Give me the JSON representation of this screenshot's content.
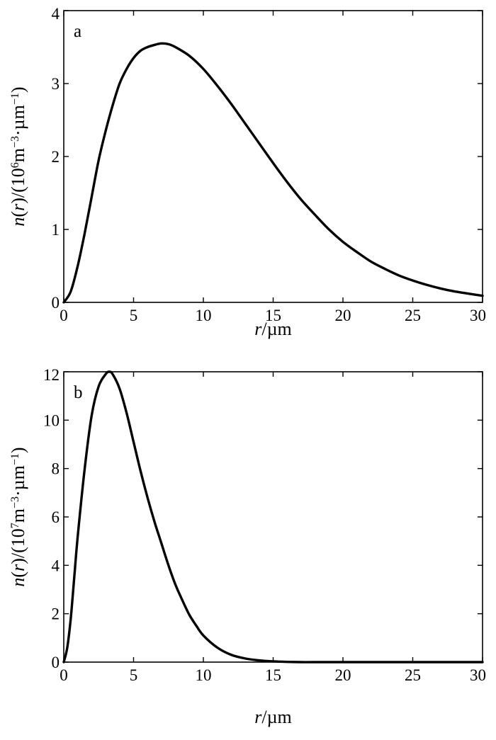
{
  "chart_data": [
    {
      "type": "line",
      "panel_label": "a",
      "xlabel": {
        "italic": "r",
        "rest": "/µm"
      },
      "ylabel": {
        "italic1": "n",
        "p1": "(",
        "italic2": "r",
        "p2": ")/(10",
        "exp1": "6",
        "unit": "m",
        "exp2": "−3",
        "dot": "·µm",
        "exp3": "−1",
        "end": ")"
      },
      "xlim": [
        0,
        30
      ],
      "ylim": [
        0,
        4
      ],
      "xticks": [
        "0",
        "5",
        "10",
        "15",
        "20",
        "25",
        "30"
      ],
      "yticks": [
        "0",
        "1",
        "2",
        "3",
        "4"
      ],
      "grid": false,
      "series": [
        {
          "x": [
            0,
            0.5,
            1,
            1.5,
            2,
            2.5,
            3,
            3.5,
            4,
            4.5,
            5,
            5.5,
            6,
            6.5,
            7,
            7.5,
            8,
            9,
            10,
            11,
            12,
            13,
            14,
            15,
            16,
            17,
            18,
            19,
            20,
            21,
            22,
            23,
            24,
            25,
            26,
            27,
            28,
            29,
            30
          ],
          "y": [
            0,
            0.15,
            0.5,
            0.95,
            1.45,
            1.95,
            2.35,
            2.7,
            3.0,
            3.2,
            3.35,
            3.45,
            3.5,
            3.53,
            3.55,
            3.54,
            3.5,
            3.38,
            3.2,
            2.97,
            2.72,
            2.45,
            2.18,
            1.91,
            1.65,
            1.41,
            1.2,
            1.0,
            0.83,
            0.69,
            0.56,
            0.46,
            0.37,
            0.3,
            0.24,
            0.19,
            0.15,
            0.12,
            0.09
          ]
        }
      ]
    },
    {
      "type": "line",
      "panel_label": "b",
      "xlabel": {
        "italic": "r",
        "rest": "/µm"
      },
      "ylabel": {
        "italic1": "n",
        "p1": "(",
        "italic2": "r",
        "p2": ")/(10",
        "exp1": "7",
        "unit": "m",
        "exp2": "−3",
        "dot": "·µm",
        "exp3": "−1",
        "end": ")"
      },
      "xlim": [
        0,
        30
      ],
      "ylim": [
        0,
        12
      ],
      "xticks": [
        "0",
        "5",
        "10",
        "15",
        "20",
        "25",
        "30"
      ],
      "yticks": [
        "0",
        "2",
        "4",
        "6",
        "8",
        "10",
        "12"
      ],
      "grid": false,
      "series": [
        {
          "x": [
            0,
            0.25,
            0.5,
            0.75,
            1,
            1.5,
            2,
            2.5,
            3,
            3.25,
            3.5,
            4,
            4.5,
            5,
            5.5,
            6,
            6.5,
            7,
            7.5,
            8,
            8.5,
            9,
            9.5,
            10,
            11,
            12,
            13,
            14,
            15,
            16,
            17,
            18,
            20,
            22,
            25,
            30
          ],
          "y": [
            0,
            0.6,
            1.8,
            3.5,
            5.2,
            8.0,
            10.2,
            11.4,
            11.9,
            12.0,
            11.9,
            11.3,
            10.3,
            9.1,
            7.9,
            6.8,
            5.8,
            4.9,
            4.0,
            3.2,
            2.55,
            1.95,
            1.5,
            1.1,
            0.6,
            0.3,
            0.15,
            0.07,
            0.03,
            0.01,
            0,
            0,
            0,
            0,
            0,
            0
          ]
        }
      ]
    }
  ]
}
